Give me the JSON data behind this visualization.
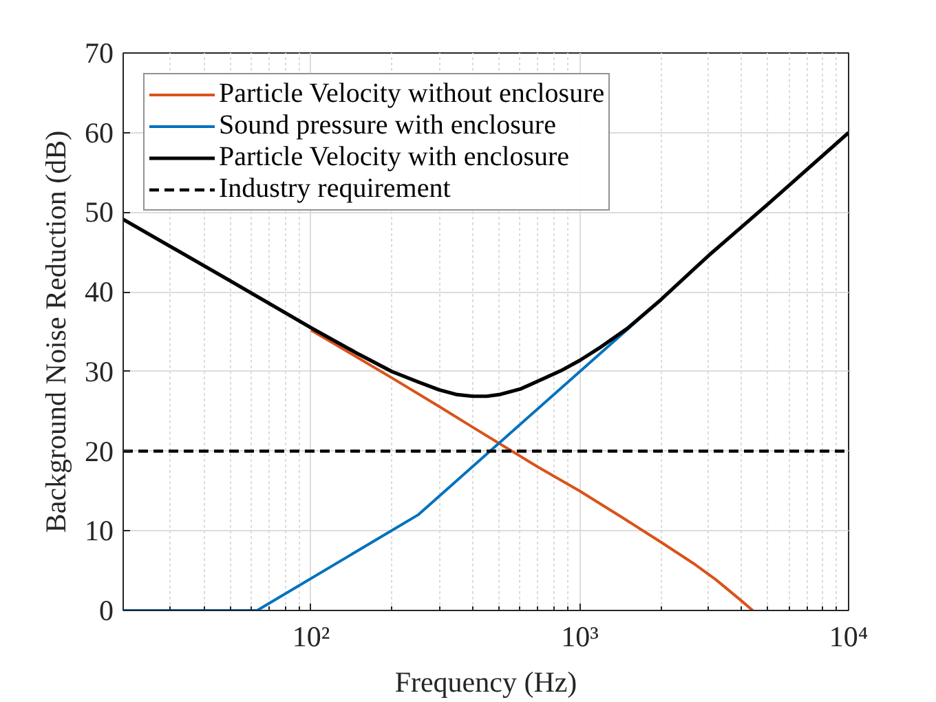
{
  "chart_data": {
    "type": "line",
    "xlabel": "Frequency (Hz)",
    "ylabel": "Background Noise Reduction (dB)",
    "log": "x",
    "xlim": [
      20,
      10000
    ],
    "ylim": [
      0,
      70
    ],
    "xticks": [
      {
        "value": 100,
        "label": "10²"
      },
      {
        "value": 1000,
        "label": "10³"
      },
      {
        "value": 10000,
        "label": "10⁴"
      }
    ],
    "yticks": [
      0,
      10,
      20,
      30,
      40,
      50,
      60,
      70
    ],
    "grid": true,
    "legend": "top left",
    "series": [
      {
        "name": "Particle Velocity without enclosure",
        "color": "#d95319",
        "x": [
          100,
          150,
          200,
          300,
          400,
          500,
          700,
          1000,
          1450,
          2000,
          2650,
          3200,
          3900,
          4400
        ],
        "values": [
          35.2,
          31.7,
          29.2,
          25.6,
          23,
          21,
          18,
          15,
          11.6,
          8.6,
          5.9,
          3.9,
          1.5,
          0
        ]
      },
      {
        "name": "Sound pressure with enclosure",
        "color": "#0072bd",
        "x": [
          20,
          63,
          250,
          2000
        ],
        "values": [
          0,
          0,
          12,
          39
        ]
      },
      {
        "name": "Particle Velocity with enclosure",
        "color": "#000000",
        "x": [
          20,
          50,
          100,
          150,
          200,
          250,
          300,
          350,
          400,
          450,
          500,
          600,
          700,
          850,
          1000,
          1200,
          1500,
          2000,
          3000,
          5000,
          10000
        ],
        "values": [
          49.1,
          41.4,
          35.5,
          32.2,
          30,
          28.7,
          27.7,
          27.1,
          26.9,
          26.9,
          27.1,
          27.8,
          28.8,
          30.1,
          31.4,
          33.1,
          35.4,
          39,
          44.5,
          51,
          60
        ]
      },
      {
        "name": "Industry requirement",
        "color": "#000000",
        "line_style": "dashed",
        "x": [
          20,
          10000
        ],
        "values": [
          20,
          20
        ]
      }
    ]
  }
}
